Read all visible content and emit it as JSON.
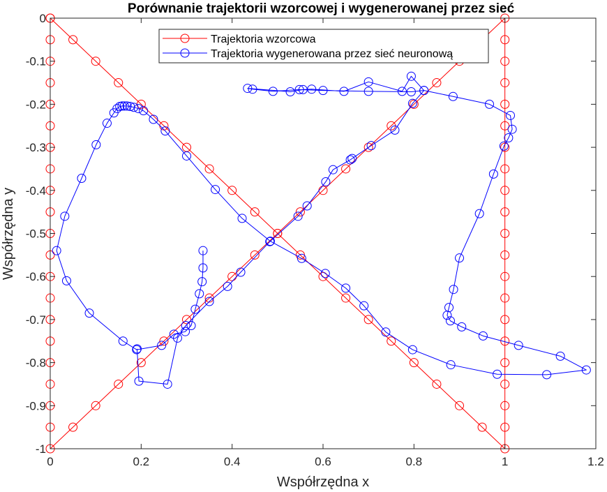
{
  "chart_data": {
    "type": "line",
    "title": "Porównanie trajektorii wzorcowej i wygenerowanej przez sieć",
    "xlabel": "Współrzędna x",
    "ylabel": "Współrzędna y",
    "xlim": [
      0,
      1.2
    ],
    "ylim": [
      -1,
      0
    ],
    "xticks": [
      0,
      0.2,
      0.4,
      0.6,
      0.8,
      1,
      1.2
    ],
    "xtick_labels": [
      "0",
      "0.2",
      "0.4",
      "0.6",
      "0.8",
      "1",
      "1.2"
    ],
    "yticks": [
      0,
      -0.1,
      -0.2,
      -0.3,
      -0.4,
      -0.5,
      -0.6,
      -0.7,
      -0.8,
      -0.9,
      -1
    ],
    "ytick_labels": [
      "0",
      "-0.1",
      "-0.2",
      "-0.3",
      "-0.4",
      "-0.5",
      "-0.6",
      "-0.7",
      "-0.8",
      "-0.9",
      "-1"
    ],
    "grid": false,
    "legend_position": "top",
    "series": [
      {
        "name": "Trajektoria wzorcowa",
        "color": "#ff0000",
        "marker": "circle",
        "points": [
          [
            0,
            0
          ],
          [
            0.05,
            -0.05
          ],
          [
            0.1,
            -0.1
          ],
          [
            0.15,
            -0.15
          ],
          [
            0.2,
            -0.2
          ],
          [
            0.25,
            -0.25
          ],
          [
            0.3,
            -0.3
          ],
          [
            0.35,
            -0.35
          ],
          [
            0.4,
            -0.4
          ],
          [
            0.45,
            -0.45
          ],
          [
            0.5,
            -0.5
          ],
          [
            0.55,
            -0.55
          ],
          [
            0.6,
            -0.6
          ],
          [
            0.65,
            -0.65
          ],
          [
            0.7,
            -0.7
          ],
          [
            0.75,
            -0.75
          ],
          [
            0.8,
            -0.8
          ],
          [
            0.85,
            -0.85
          ],
          [
            0.9,
            -0.9
          ],
          [
            0.95,
            -0.95
          ],
          [
            1,
            -1
          ],
          [
            1,
            -0.95
          ],
          [
            1,
            -0.9
          ],
          [
            1,
            -0.85
          ],
          [
            1,
            -0.8
          ],
          [
            1,
            -0.75
          ],
          [
            1,
            -0.7
          ],
          [
            1,
            -0.65
          ],
          [
            1,
            -0.6
          ],
          [
            1,
            -0.55
          ],
          [
            1,
            -0.5
          ],
          [
            1,
            -0.45
          ],
          [
            1,
            -0.4
          ],
          [
            1,
            -0.35
          ],
          [
            1,
            -0.3
          ],
          [
            1,
            -0.25
          ],
          [
            1,
            -0.2
          ],
          [
            1,
            -0.15
          ],
          [
            1,
            -0.1
          ],
          [
            1,
            -0.05
          ],
          [
            1,
            0
          ],
          [
            0.95,
            -0.05
          ],
          [
            0.9,
            -0.1
          ],
          [
            0.85,
            -0.15
          ],
          [
            0.8,
            -0.2
          ],
          [
            0.75,
            -0.25
          ],
          [
            0.7,
            -0.3
          ],
          [
            0.65,
            -0.35
          ],
          [
            0.6,
            -0.4
          ],
          [
            0.55,
            -0.45
          ],
          [
            0.5,
            -0.5
          ],
          [
            0.45,
            -0.55
          ],
          [
            0.4,
            -0.6
          ],
          [
            0.35,
            -0.65
          ],
          [
            0.3,
            -0.7
          ],
          [
            0.25,
            -0.75
          ],
          [
            0.2,
            -0.8
          ],
          [
            0.15,
            -0.85
          ],
          [
            0.1,
            -0.9
          ],
          [
            0.05,
            -0.95
          ],
          [
            0,
            -1
          ],
          [
            0,
            -0.95
          ],
          [
            0,
            -0.9
          ],
          [
            0,
            -0.85
          ],
          [
            0,
            -0.8
          ],
          [
            0,
            -0.75
          ],
          [
            0,
            -0.7
          ],
          [
            0,
            -0.65
          ],
          [
            0,
            -0.6
          ],
          [
            0,
            -0.55
          ],
          [
            0,
            -0.5
          ],
          [
            0,
            -0.45
          ],
          [
            0,
            -0.4
          ],
          [
            0,
            -0.35
          ],
          [
            0,
            -0.3
          ],
          [
            0,
            -0.25
          ],
          [
            0,
            -0.2
          ],
          [
            0,
            -0.15
          ],
          [
            0,
            -0.1
          ],
          [
            0,
            -0.05
          ],
          [
            0,
            0
          ]
        ]
      },
      {
        "name": "Trajektoria wygenerowana przez sieć neuronową",
        "color": "#0000ff",
        "marker": "circle",
        "points": [
          [
            0.336,
            -0.54
          ],
          [
            0.336,
            -0.58
          ],
          [
            0.334,
            -0.612
          ],
          [
            0.328,
            -0.64
          ],
          [
            0.319,
            -0.676
          ],
          [
            0.31,
            -0.714
          ],
          [
            0.297,
            -0.728
          ],
          [
            0.272,
            -0.734
          ],
          [
            0.245,
            -0.76
          ],
          [
            0.19,
            -0.77
          ],
          [
            0.16,
            -0.75
          ],
          [
            0.086,
            -0.685
          ],
          [
            0.036,
            -0.61
          ],
          [
            0.014,
            -0.54
          ],
          [
            0.032,
            -0.46
          ],
          [
            0.069,
            -0.372
          ],
          [
            0.101,
            -0.294
          ],
          [
            0.125,
            -0.244
          ],
          [
            0.14,
            -0.22
          ],
          [
            0.147,
            -0.21
          ],
          [
            0.153,
            -0.205
          ],
          [
            0.158,
            -0.204
          ],
          [
            0.163,
            -0.204
          ],
          [
            0.169,
            -0.204
          ],
          [
            0.176,
            -0.205
          ],
          [
            0.184,
            -0.207
          ],
          [
            0.194,
            -0.21
          ],
          [
            0.205,
            -0.215
          ],
          [
            0.227,
            -0.235
          ],
          [
            0.253,
            -0.262
          ],
          [
            0.3,
            -0.32
          ],
          [
            0.363,
            -0.398
          ],
          [
            0.422,
            -0.465
          ],
          [
            0.484,
            -0.518
          ],
          [
            0.553,
            -0.558
          ],
          [
            0.605,
            -0.593
          ],
          [
            0.65,
            -0.627
          ],
          [
            0.69,
            -0.668
          ],
          [
            0.738,
            -0.729
          ],
          [
            0.797,
            -0.77
          ],
          [
            0.881,
            -0.805
          ],
          [
            0.983,
            -0.827
          ],
          [
            1.092,
            -0.828
          ],
          [
            1.179,
            -0.817
          ],
          [
            1.122,
            -0.785
          ],
          [
            1.03,
            -0.76
          ],
          [
            0.952,
            -0.738
          ],
          [
            0.905,
            -0.717
          ],
          [
            0.88,
            -0.703
          ],
          [
            0.873,
            -0.69
          ],
          [
            0.877,
            -0.672
          ],
          [
            0.887,
            -0.63
          ],
          [
            0.9,
            -0.557
          ],
          [
            0.944,
            -0.454
          ],
          [
            0.975,
            -0.362
          ],
          [
            0.998,
            -0.297
          ],
          [
            1.008,
            -0.278
          ],
          [
            1.016,
            -0.258
          ],
          [
            1.012,
            -0.226
          ],
          [
            0.966,
            -0.2
          ],
          [
            0.886,
            -0.182
          ],
          [
            0.822,
            -0.168
          ],
          [
            0.794,
            -0.135
          ],
          [
            0.774,
            -0.17
          ],
          [
            0.7,
            -0.148
          ],
          [
            0.646,
            -0.17
          ],
          [
            0.575,
            -0.165
          ],
          [
            0.556,
            -0.166
          ],
          [
            0.528,
            -0.171
          ],
          [
            0.434,
            -0.163
          ],
          [
            0.445,
            -0.165
          ],
          [
            0.49,
            -0.17
          ],
          [
            0.548,
            -0.166
          ],
          [
            0.6,
            -0.168
          ],
          [
            0.7,
            -0.17
          ],
          [
            0.794,
            -0.171
          ],
          [
            0.822,
            -0.168
          ],
          [
            0.797,
            -0.198
          ],
          [
            0.758,
            -0.26
          ],
          [
            0.706,
            -0.296
          ],
          [
            0.664,
            -0.326
          ],
          [
            0.66,
            -0.329
          ],
          [
            0.622,
            -0.352
          ],
          [
            0.606,
            -0.38
          ],
          [
            0.565,
            -0.436
          ],
          [
            0.545,
            -0.46
          ],
          [
            0.483,
            -0.519
          ],
          [
            0.419,
            -0.59
          ],
          [
            0.39,
            -0.623
          ],
          [
            0.35,
            -0.658
          ],
          [
            0.298,
            -0.714
          ],
          [
            0.28,
            -0.743
          ],
          [
            0.258,
            -0.85
          ],
          [
            0.195,
            -0.843
          ],
          [
            0.191,
            -0.768
          ]
        ],
        "note": ""
      }
    ]
  }
}
